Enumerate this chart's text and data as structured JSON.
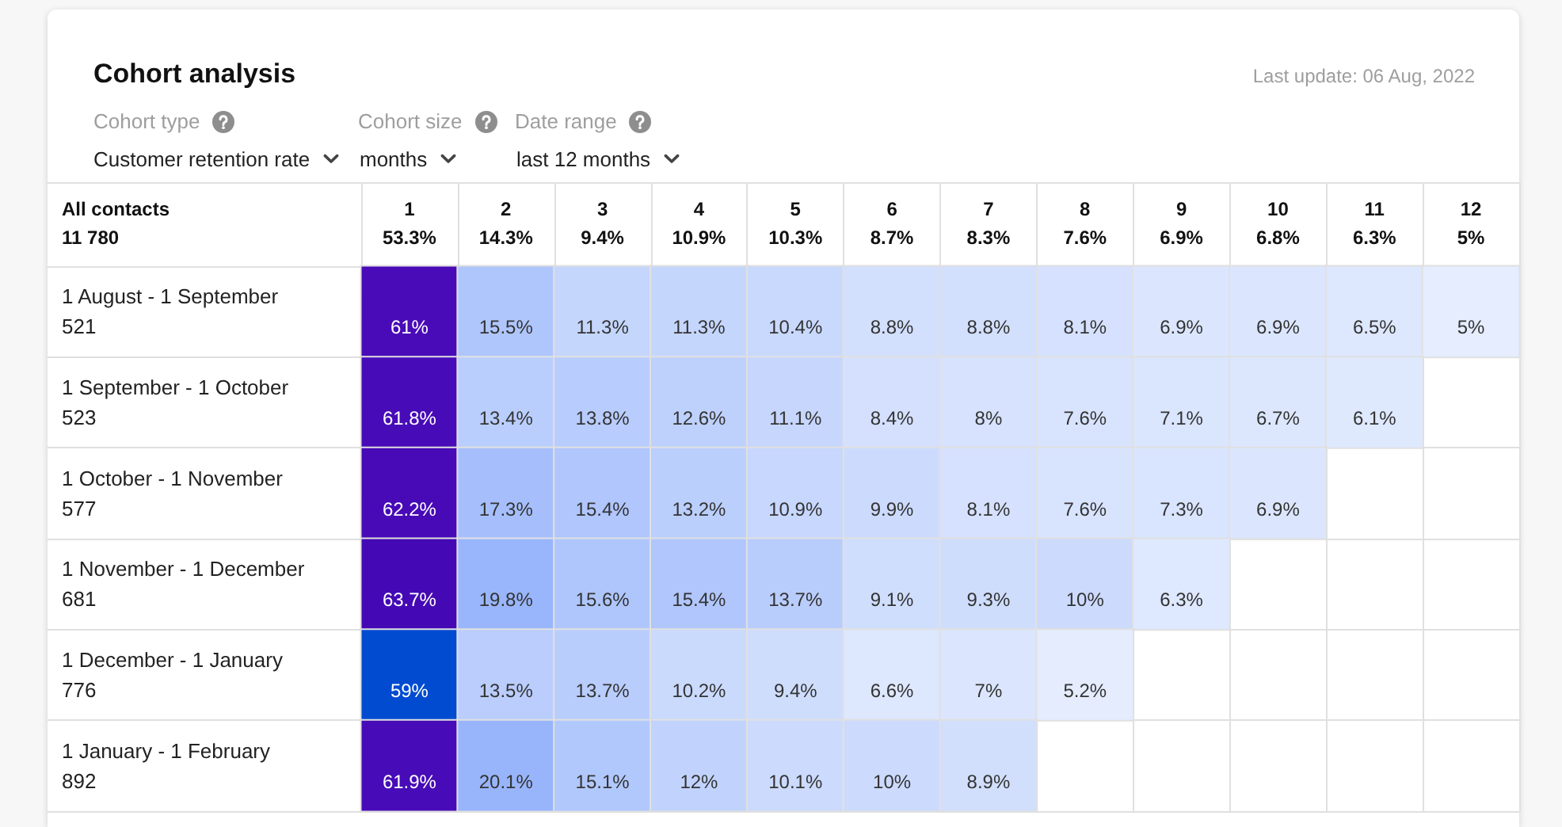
{
  "chart_data": {
    "type": "heatmap",
    "title": "Cohort analysis",
    "annotations": [
      "Last update: 06 Aug, 2022",
      "Cohort type",
      "Cohort size",
      "Date range",
      "Customer retention rate",
      "months",
      "last 12 months",
      "All contacts\n11 780"
    ],
    "categories": [
      "1\n53.3%",
      "2\n14.3%",
      "3\n9.4%",
      "4\n10.9%",
      "5\n10.3%",
      "6\n8.7%",
      "7\n8.3%",
      "8\n7.6%",
      "9\n6.9%",
      "10\n6.8%",
      "11\n6.3%",
      "12\n5%"
    ],
    "y_categories": [
      "1 August - 1 September\n521",
      "1 September - 1 October\n523",
      "1 October - 1 November\n577",
      "1 November - 1 December\n681",
      "1 December - 1 January\n776",
      "1 January - 1 February\n892"
    ],
    "cells": [
      [
        61,
        15.5,
        11.3,
        11.3,
        10.4,
        8.8,
        8.8,
        8.1,
        6.9,
        6.9,
        6.5,
        5
      ],
      [
        61.8,
        13.4,
        13.8,
        12.6,
        11.1,
        8.4,
        8,
        7.6,
        7.1,
        6.7,
        6.1,
        null
      ],
      [
        62.2,
        17.3,
        15.4,
        13.2,
        10.9,
        9.9,
        8.1,
        7.6,
        7.3,
        6.9,
        null,
        null
      ],
      [
        63.7,
        19.8,
        15.6,
        15.4,
        13.7,
        9.1,
        9.3,
        10,
        6.3,
        null,
        null,
        null
      ],
      [
        59,
        13.5,
        13.7,
        10.2,
        9.4,
        6.6,
        7,
        5.2,
        null,
        null,
        null,
        null
      ],
      [
        61.9,
        20.1,
        15.1,
        12,
        10.1,
        10,
        8.9,
        null,
        null,
        null,
        null,
        null
      ]
    ],
    "cell_labels": [
      [
        "61%",
        "15.5%",
        "11.3%",
        "11.3%",
        "10.4%",
        "8.8%",
        "8.8%",
        "8.1%",
        "6.9%",
        "6.9%",
        "6.5%",
        "5%"
      ],
      [
        "61.8%",
        "13.4%",
        "13.8%",
        "12.6%",
        "11.1%",
        "8.4%",
        "8%",
        "7.6%",
        "7.1%",
        "6.7%",
        "6.1%",
        null
      ],
      [
        "62.2%",
        "17.3%",
        "15.4%",
        "13.2%",
        "10.9%",
        "9.9%",
        "8.1%",
        "7.6%",
        "7.3%",
        "6.9%",
        null,
        null
      ],
      [
        "63.7%",
        "19.8%",
        "15.6%",
        "15.4%",
        "13.7%",
        "9.1%",
        "9.3%",
        "10%",
        "6.3%",
        null,
        null,
        null
      ],
      [
        "59%",
        "13.5%",
        "13.7%",
        "10.2%",
        "9.4%",
        "6.6%",
        "7%",
        "5.2%",
        null,
        null,
        null,
        null
      ],
      [
        "61.9%",
        "20.1%",
        "15.1%",
        "12%",
        "10.1%",
        "10%",
        "8.9%",
        null,
        null,
        null,
        null,
        null
      ]
    ],
    "grid": true
  }
}
